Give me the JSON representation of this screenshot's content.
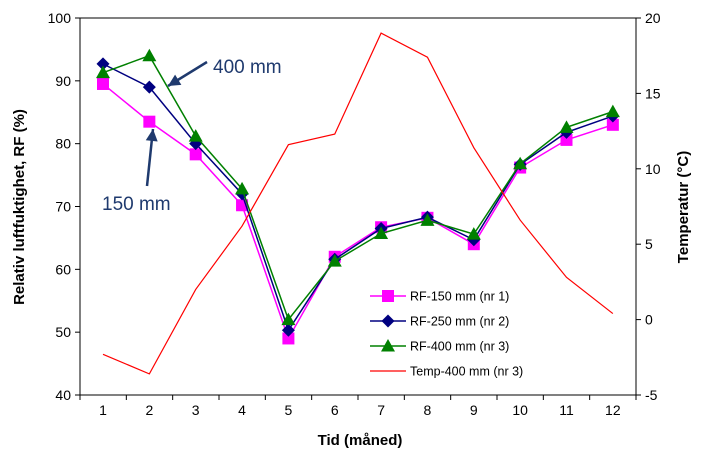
{
  "chart_data": {
    "type": "line",
    "title": "",
    "xlabel": "Tid (måned)",
    "ylabel_left": "Relativ luftfuktighet, RF (%)",
    "ylabel_right": "Temperatur  (°C)",
    "x": [
      1,
      2,
      3,
      4,
      5,
      6,
      7,
      8,
      9,
      10,
      11,
      12
    ],
    "x_tick_labels": [
      "1",
      "2",
      "3",
      "4",
      "5",
      "6",
      "7",
      "8",
      "9",
      "10",
      "11",
      "12"
    ],
    "ylim_left": [
      40,
      100
    ],
    "y_left_ticks": [
      40,
      50,
      60,
      70,
      80,
      90,
      100
    ],
    "y_left_tick_labels": [
      "40",
      "50",
      "60",
      "70",
      "80",
      "90",
      "100"
    ],
    "ylim_right": [
      -5,
      20
    ],
    "y_right_ticks": [
      -5,
      0,
      5,
      10,
      15,
      20
    ],
    "y_right_tick_labels": [
      "-5",
      "0",
      "5",
      "10",
      "15",
      "20"
    ],
    "grid": false,
    "legend_position": "bottom-right",
    "series": [
      {
        "name": "RF-150 mm (nr 1)",
        "axis": "left",
        "color": "#ff00ff",
        "marker": "square",
        "values": [
          89.5,
          83.5,
          78.3,
          70.2,
          49.0,
          62.0,
          66.7,
          68.2,
          64.0,
          76.2,
          80.6,
          83.0
        ]
      },
      {
        "name": "RF-250 mm (nr 2)",
        "axis": "left",
        "color": "#000080",
        "marker": "diamond",
        "values": [
          92.7,
          89.0,
          80.0,
          72.0,
          50.3,
          61.6,
          66.5,
          68.3,
          64.7,
          76.7,
          81.8,
          84.4
        ]
      },
      {
        "name": "RF-400 mm (nr 3)",
        "axis": "left",
        "color": "#008000",
        "marker": "triangle",
        "values": [
          91.3,
          94.0,
          81.2,
          72.8,
          52.0,
          61.3,
          65.7,
          67.8,
          65.6,
          76.8,
          82.6,
          85.1
        ]
      },
      {
        "name": "Temp-400 mm (nr 3)",
        "axis": "right",
        "color": "#ff0000",
        "marker": "none",
        "values": [
          -2.3,
          -3.6,
          2.0,
          6.2,
          11.6,
          12.3,
          19.0,
          17.4,
          11.4,
          6.6,
          2.8,
          0.4
        ]
      }
    ],
    "annotations": [
      {
        "text": "400 mm"
      },
      {
        "text": "150 mm"
      }
    ]
  }
}
